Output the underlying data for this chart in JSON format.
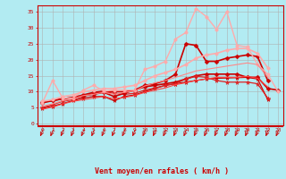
{
  "x": [
    0,
    1,
    2,
    3,
    4,
    5,
    6,
    7,
    8,
    9,
    10,
    11,
    12,
    13,
    14,
    15,
    16,
    17,
    18,
    19,
    20,
    21,
    22,
    23
  ],
  "background_color": "#b2ebf2",
  "grid_color": "#b0b0b0",
  "xlabel": "Vent moyen/en rafales ( km/h )",
  "xlabel_color": "#cc0000",
  "lines": [
    {
      "y": [
        4.8,
        5.5,
        6.3,
        7.2,
        8.0,
        8.5,
        8.5,
        7.2,
        8.5,
        9.0,
        10.0,
        11.0,
        12.0,
        12.5,
        13.0,
        13.5,
        14.0,
        14.2,
        14.3,
        14.4,
        14.5,
        14.0,
        7.5,
        null
      ],
      "color": "#cc0000",
      "lw": 0.9,
      "marker": "*",
      "ms": 3.5
    },
    {
      "y": [
        6.5,
        7.2,
        7.8,
        8.2,
        9.0,
        9.8,
        10.2,
        10.0,
        10.0,
        10.5,
        11.5,
        12.0,
        12.5,
        13.0,
        14.0,
        15.0,
        15.5,
        15.5,
        15.5,
        15.5,
        14.5,
        14.5,
        11.0,
        10.5
      ],
      "color": "#cc0000",
      "lw": 1.2,
      "marker": "D",
      "ms": 2.5
    },
    {
      "y": [
        5.0,
        6.0,
        7.0,
        7.5,
        8.5,
        9.5,
        10.0,
        9.5,
        9.2,
        9.5,
        10.5,
        11.2,
        12.0,
        12.5,
        14.0,
        14.8,
        14.5,
        13.5,
        13.0,
        13.0,
        13.0,
        12.5,
        8.0,
        null
      ],
      "color": "#dd2222",
      "lw": 0.9,
      "marker": "*",
      "ms": 3.5
    },
    {
      "y": [
        6.8,
        7.2,
        7.8,
        8.2,
        8.8,
        9.2,
        9.8,
        8.5,
        9.5,
        10.5,
        12.0,
        12.5,
        13.5,
        15.5,
        25.0,
        24.5,
        19.5,
        19.5,
        20.5,
        21.0,
        21.5,
        21.0,
        13.5,
        null
      ],
      "color": "#cc0000",
      "lw": 1.2,
      "marker": "D",
      "ms": 2.5
    },
    {
      "y": [
        6.5,
        13.5,
        8.0,
        8.0,
        10.5,
        12.0,
        10.2,
        10.5,
        10.5,
        10.5,
        17.0,
        18.0,
        19.5,
        26.5,
        28.5,
        36.0,
        33.5,
        29.5,
        35.0,
        24.5,
        24.0,
        18.5,
        15.5,
        10.0
      ],
      "color": "#ffaaaa",
      "lw": 1.0,
      "marker": "o",
      "ms": 2.5
    },
    {
      "y": [
        7.0,
        7.5,
        8.5,
        9.0,
        10.0,
        10.5,
        11.0,
        11.0,
        11.5,
        12.0,
        13.5,
        15.0,
        16.0,
        17.0,
        18.5,
        20.5,
        21.5,
        22.0,
        23.0,
        23.5,
        23.5,
        22.0,
        17.5,
        null
      ],
      "color": "#ffaaaa",
      "lw": 1.2,
      "marker": "o",
      "ms": 2.5
    },
    {
      "y": [
        4.5,
        5.2,
        6.2,
        7.0,
        7.5,
        8.0,
        8.5,
        7.8,
        8.2,
        8.8,
        9.8,
        10.5,
        11.2,
        12.2,
        12.8,
        13.5,
        14.0,
        14.5,
        14.5,
        14.5,
        14.8,
        14.2,
        11.5,
        null
      ],
      "color": "#ff4444",
      "lw": 0.8,
      "marker": null,
      "ms": 0
    },
    {
      "y": [
        5.5,
        6.2,
        7.2,
        7.8,
        8.8,
        9.2,
        9.8,
        9.2,
        9.8,
        10.2,
        11.8,
        12.8,
        13.5,
        14.5,
        15.5,
        16.5,
        17.0,
        17.5,
        18.0,
        18.5,
        19.0,
        18.5,
        14.5,
        null
      ],
      "color": "#ff8888",
      "lw": 0.8,
      "marker": null,
      "ms": 0
    }
  ],
  "yticks": [
    0,
    5,
    10,
    15,
    20,
    25,
    30,
    35
  ],
  "xticks": [
    0,
    1,
    2,
    3,
    4,
    5,
    6,
    7,
    8,
    9,
    10,
    11,
    12,
    13,
    14,
    15,
    16,
    17,
    18,
    19,
    20,
    21,
    22,
    23
  ],
  "ylim": [
    -0.5,
    37
  ],
  "xlim": [
    -0.5,
    23.5
  ],
  "tick_color": "#cc0000",
  "arrow_color": "#cc0000"
}
